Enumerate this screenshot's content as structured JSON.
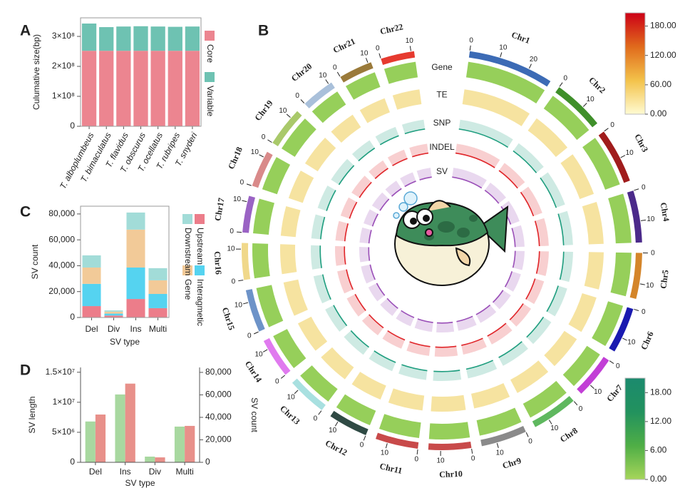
{
  "chart_data": [
    {
      "type": "stacked_bar",
      "label": "A",
      "ylabel": "Culumative size(bp)",
      "categories": [
        "T. alboplumbeus",
        "T. bimaculatus",
        "T. flavidus",
        "T. obscurus",
        "T. ocellatus",
        "T. rubripes",
        "T. snyderi"
      ],
      "series": [
        {
          "name": "Core",
          "color": "#ec8590",
          "values": [
            252000000,
            252000000,
            252000000,
            252000000,
            252000000,
            252000000,
            252000000
          ]
        },
        {
          "name": "Variable",
          "color": "#6ec2b2",
          "values": [
            91000000,
            79000000,
            81000000,
            82000000,
            81000000,
            80000000,
            81000000
          ]
        }
      ],
      "ylim": [
        0,
        362000000
      ],
      "yticks": [
        0,
        {
          "value": 100000000,
          "label": "1×10⁸"
        },
        {
          "value": 200000000,
          "label": "2×10⁸"
        },
        {
          "value": 300000000,
          "label": "3×10⁸"
        }
      ]
    },
    {
      "type": "circos",
      "label": "B",
      "chromosomes": [
        {
          "name": "Chr1",
          "length": 28,
          "color": "#3c6bb5"
        },
        {
          "name": "Chr2",
          "length": 17,
          "color": "#3f8f2a"
        },
        {
          "name": "Chr3",
          "length": 18,
          "color": "#a01c1c"
        },
        {
          "name": "Chr4",
          "length": 17,
          "color": "#4b2a8a"
        },
        {
          "name": "Chr5",
          "length": 15,
          "color": "#d4852a"
        },
        {
          "name": "Chr6",
          "length": 15,
          "color": "#1a1ab0"
        },
        {
          "name": "Chr7",
          "length": 14,
          "color": "#c23fd6"
        },
        {
          "name": "Chr8",
          "length": 15,
          "color": "#5fb85f"
        },
        {
          "name": "Chr9",
          "length": 15,
          "color": "#8a8a8a"
        },
        {
          "name": "Chr10",
          "length": 14,
          "color": "#c84a4a"
        },
        {
          "name": "Chr11",
          "length": 14,
          "color": "#c84a4a"
        },
        {
          "name": "Chr12",
          "length": 13,
          "color": "#2f4a44"
        },
        {
          "name": "Chr13",
          "length": 13,
          "color": "#a8e0e0"
        },
        {
          "name": "Chr14",
          "length": 13,
          "color": "#e07aef"
        },
        {
          "name": "Chr15",
          "length": 14,
          "color": "#6d93c8"
        },
        {
          "name": "Chr16",
          "length": 12,
          "color": "#f0d88a"
        },
        {
          "name": "Chr17",
          "length": 12,
          "color": "#9a63c4"
        },
        {
          "name": "Chr18",
          "length": 12,
          "color": "#d98a8a"
        },
        {
          "name": "Chr19",
          "length": 13,
          "color": "#a9c96a"
        },
        {
          "name": "Chr20",
          "length": 11,
          "color": "#a9c0da"
        },
        {
          "name": "Chr21",
          "length": 11,
          "color": "#9a7a3a"
        },
        {
          "name": "Chr22",
          "length": 11,
          "color": "#e63a2f"
        }
      ],
      "ideogram_ticks": [
        0,
        10,
        20
      ],
      "tracks": [
        {
          "name": "Gene",
          "color": "#96cf5a"
        },
        {
          "name": "TE",
          "color": "#f6e3a0"
        },
        {
          "name": "SNP",
          "color": "#1f9e7f"
        },
        {
          "name": "INDEL",
          "color": "#e0262a"
        },
        {
          "name": "SV",
          "color": "#9a4fb8"
        }
      ],
      "colorbars": [
        {
          "lim": [
            0,
            207
          ],
          "colors": [
            "#fffbd2",
            "#f3c24a",
            "#e06a1c",
            "#cc0016"
          ],
          "ticks": [
            {
              "value": 0,
              "label": "0.00"
            },
            {
              "value": 60,
              "label": "60.00"
            },
            {
              "value": 120,
              "label": "120.00"
            },
            {
              "value": 180,
              "label": "180.00"
            }
          ]
        },
        {
          "lim": [
            0,
            21
          ],
          "colors": [
            "#a6d55a",
            "#4fae46",
            "#22925e",
            "#1b8a6e"
          ],
          "ticks": [
            {
              "value": 0,
              "label": "0.00"
            },
            {
              "value": 6,
              "label": "6.00"
            },
            {
              "value": 12,
              "label": "12.00"
            },
            {
              "value": 18,
              "label": "18.00"
            }
          ]
        }
      ]
    },
    {
      "type": "stacked_bar",
      "label": "C",
      "xlabel": "SV type",
      "ylabel": "SV count",
      "categories": [
        "Del",
        "Div",
        "Ins",
        "Multi"
      ],
      "series": [
        {
          "name": "Upstream",
          "color": "#ec7d8a",
          "values": [
            8800,
            1500,
            14300,
            7200
          ]
        },
        {
          "name": "Interagmetic",
          "color": "#55d3f0",
          "values": [
            17200,
            1500,
            24300,
            11000
          ]
        },
        {
          "name": "Gene",
          "color": "#f2ca98",
          "values": [
            12600,
            1500,
            29300,
            10500
          ]
        },
        {
          "name": "Downstream",
          "color": "#a2dcd8",
          "values": [
            9400,
            1000,
            13200,
            9400
          ]
        }
      ],
      "ylim": [
        0,
        86000
      ],
      "yticks": [
        0,
        {
          "value": 20000,
          "label": "20,000"
        },
        {
          "value": 40000,
          "label": "40,000"
        },
        {
          "value": 60000,
          "label": "60,000"
        },
        {
          "value": 80000,
          "label": "80,000"
        }
      ]
    },
    {
      "type": "grouped_bar",
      "label": "D",
      "xlabel": "SV type",
      "ylabel": "SV length",
      "y2label": "SV count",
      "categories": [
        "Del",
        "Ins",
        "Div",
        "Multi"
      ],
      "series": [
        {
          "color": "#a8d8a0",
          "values": [
            6800000,
            11300000,
            950000,
            5950000
          ]
        },
        {
          "color": "#e8908a",
          "axis": "y2",
          "values": [
            42500,
            70000,
            4400,
            32400
          ]
        }
      ],
      "ylim": [
        0,
        15800000
      ],
      "yticks": [
        0,
        {
          "value": 5000000,
          "label": "5×10⁶"
        },
        {
          "value": 10000000,
          "label": "1×10⁷"
        },
        {
          "value": 15000000,
          "label": "1.5×10⁷"
        }
      ],
      "y2lim": [
        0,
        84400
      ],
      "y2ticks": [
        0,
        {
          "value": 20000,
          "label": "20,000"
        },
        {
          "value": 40000,
          "label": "40,000"
        },
        {
          "value": 60000,
          "label": "60,000"
        },
        {
          "value": 80000,
          "label": "80,000"
        }
      ]
    }
  ]
}
